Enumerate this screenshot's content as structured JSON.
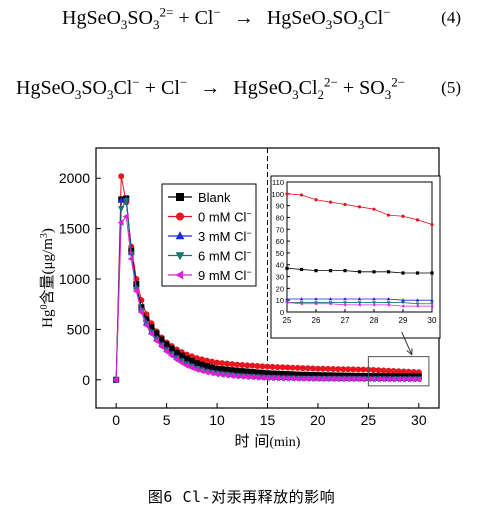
{
  "equations": [
    {
      "id": "4",
      "number": "(4)",
      "lhs": [
        {
          "t": "HgSeO"
        },
        {
          "sub": "3"
        },
        {
          "t": "SO"
        },
        {
          "sub": "3"
        },
        {
          "sup": "2="
        },
        {
          "t": " + Cl"
        },
        {
          "sup": "−"
        }
      ],
      "rhs": [
        {
          "t": "HgSeO"
        },
        {
          "sub": "3"
        },
        {
          "t": "SO"
        },
        {
          "sub": "3"
        },
        {
          "t": "Cl"
        },
        {
          "sup": "−"
        }
      ]
    },
    {
      "id": "5",
      "number": "(5)",
      "lhs": [
        {
          "t": "HgSeO"
        },
        {
          "sub": "3"
        },
        {
          "t": "SO"
        },
        {
          "sub": "3"
        },
        {
          "t": "Cl"
        },
        {
          "sup": "−"
        },
        {
          "t": " + Cl"
        },
        {
          "sup": "−"
        }
      ],
      "rhs": [
        {
          "t": "HgSeO"
        },
        {
          "sub": "3"
        },
        {
          "t": "Cl"
        },
        {
          "sub": "2"
        },
        {
          "sup": "2−"
        },
        {
          "t": " + SO"
        },
        {
          "sub": "3"
        },
        {
          "sup": "2−"
        }
      ]
    }
  ],
  "arrow": "→",
  "caption": "图6 Cl-对汞再释放的影响",
  "chart_data": [
    {
      "type": "line",
      "xlabel_cn": "时  间",
      "xlabel_unit": "(min)",
      "ylabel_prefix": "Hg",
      "ylabel_sup": "0",
      "ylabel_cn": "含量",
      "ylabel_unit": "(μg/m",
      "ylabel_unit_sup": "3",
      "ylabel_close": ")",
      "xlim": [
        -2,
        32
      ],
      "ylim": [
        -280,
        2300
      ],
      "xticks": [
        0,
        5,
        10,
        15,
        20,
        25,
        30
      ],
      "yticks": [
        0,
        500,
        1000,
        1500,
        2000
      ],
      "vline_x": 15,
      "zoom_box": {
        "x": [
          25,
          31
        ],
        "y": [
          -60,
          230
        ]
      },
      "series": [
        {
          "name": "Blank",
          "color": "#000000",
          "marker": "square",
          "x": [
            0,
            0.5,
            1,
            1.5,
            2,
            2.5,
            3,
            3.5,
            4,
            4.5,
            5,
            6,
            7,
            8,
            9,
            10,
            12,
            15,
            18,
            20,
            25,
            30
          ],
          "y": [
            0,
            1790,
            1800,
            1280,
            950,
            720,
            600,
            520,
            460,
            400,
            350,
            270,
            210,
            165,
            135,
            110,
            90,
            65,
            52,
            46,
            37,
            33
          ]
        },
        {
          "name": "0 mM Cl",
          "sup": "−",
          "color": "#e8141e",
          "marker": "circle",
          "x": [
            0,
            0.5,
            1,
            1.5,
            2,
            2.5,
            3,
            3.5,
            4,
            4.5,
            5,
            6,
            7,
            8,
            9,
            10,
            12,
            15,
            18,
            20,
            25,
            30
          ],
          "y": [
            0,
            2020,
            1760,
            1320,
            1000,
            790,
            650,
            560,
            480,
            420,
            370,
            300,
            250,
            215,
            190,
            170,
            150,
            130,
            118,
            110,
            100,
            75
          ]
        },
        {
          "name": "3 mM Cl",
          "sup": "−",
          "color": "#1e2ad2",
          "marker": "triangle-up",
          "x": [
            0,
            0.5,
            1,
            1.5,
            2,
            2.5,
            3,
            3.5,
            4,
            4.5,
            5,
            6,
            7,
            8,
            9,
            10,
            12,
            15,
            18,
            20,
            25,
            30
          ],
          "y": [
            0,
            1780,
            1790,
            1260,
            920,
            700,
            570,
            480,
            410,
            350,
            300,
            220,
            160,
            120,
            90,
            70,
            45,
            25,
            18,
            15,
            12,
            11
          ]
        },
        {
          "name": "6 mM Cl",
          "sup": "−",
          "color": "#0e7a6a",
          "marker": "triangle-down",
          "x": [
            0,
            0.5,
            1,
            1.5,
            2,
            2.5,
            3,
            3.5,
            4,
            4.5,
            5,
            6,
            7,
            8,
            9,
            10,
            12,
            15,
            18,
            20,
            25,
            30
          ],
          "y": [
            0,
            1700,
            1780,
            1250,
            900,
            690,
            560,
            470,
            400,
            340,
            290,
            210,
            150,
            110,
            82,
            62,
            40,
            22,
            15,
            12,
            9,
            8
          ]
        },
        {
          "name": "9 mM Cl",
          "sup": "−",
          "color": "#e020d8",
          "marker": "triangle-left",
          "x": [
            0,
            0.5,
            1,
            1.5,
            2,
            2.5,
            3,
            3.5,
            4,
            4.5,
            5,
            6,
            7,
            8,
            9,
            10,
            12,
            15,
            18,
            20,
            25,
            30
          ],
          "y": [
            0,
            1560,
            1620,
            1200,
            880,
            670,
            540,
            455,
            385,
            330,
            280,
            200,
            140,
            100,
            75,
            55,
            35,
            18,
            12,
            10,
            8,
            5
          ]
        }
      ]
    },
    {
      "type": "line",
      "inset": true,
      "xlim": [
        25,
        30
      ],
      "ylim": [
        0,
        110
      ],
      "xticks": [
        25,
        26,
        27,
        28,
        29,
        30
      ],
      "yticks": [
        0,
        10,
        20,
        30,
        40,
        50,
        60,
        70,
        80,
        90,
        100,
        110
      ],
      "series": [
        {
          "color": "#000000",
          "marker": "square",
          "x": [
            25,
            25.5,
            26,
            26.5,
            27,
            27.5,
            28,
            28.5,
            29,
            29.5,
            30
          ],
          "y": [
            37,
            36,
            35,
            35,
            35,
            34,
            34,
            34,
            33,
            33,
            33
          ]
        },
        {
          "color": "#e8141e",
          "marker": "circle",
          "x": [
            25,
            25.5,
            26,
            26.5,
            27,
            27.5,
            28,
            28.5,
            29,
            29.5,
            30
          ],
          "y": [
            100,
            99,
            95,
            93,
            91,
            89,
            87,
            82,
            81,
            78,
            74
          ]
        },
        {
          "color": "#1e2ad2",
          "marker": "triangle-up",
          "x": [
            25,
            25.5,
            26,
            26.5,
            27,
            27.5,
            28,
            28.5,
            29,
            29.5,
            30
          ],
          "y": [
            11,
            11,
            11,
            11,
            11,
            11,
            11,
            11,
            10,
            10,
            10
          ]
        },
        {
          "color": "#0e7a6a",
          "marker": "triangle-down",
          "x": [
            25,
            25.5,
            26,
            26.5,
            27,
            27.5,
            28,
            28.5,
            29,
            29.5,
            30
          ],
          "y": [
            8,
            8,
            8,
            8,
            8,
            8,
            8,
            8,
            8,
            7,
            7
          ]
        },
        {
          "color": "#e020d8",
          "marker": "triangle-left",
          "x": [
            25,
            25.5,
            26,
            26.5,
            27,
            27.5,
            28,
            28.5,
            29,
            29.5,
            30
          ],
          "y": [
            8,
            7,
            7,
            7,
            6,
            6,
            6,
            6,
            5,
            5,
            5
          ]
        }
      ]
    }
  ]
}
